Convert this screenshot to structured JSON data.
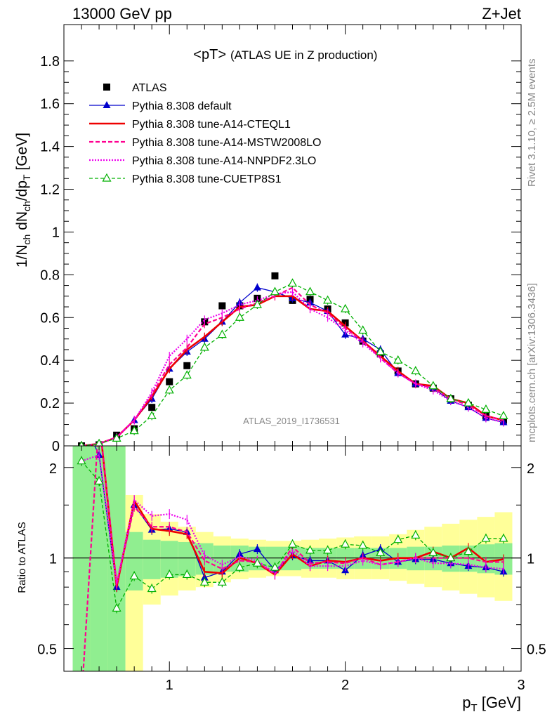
{
  "header": {
    "left": "13000 GeV pp",
    "right": "Z+Jet"
  },
  "side_notes": {
    "rivet": "Rivet 3.1.10, ≥ 2.5M events",
    "mcplots": "mcplots.cern.ch [arXiv:1306.3436]"
  },
  "inner_title": {
    "main": "<pT>",
    "sub": "(ATLAS UE in Z production)"
  },
  "analysis_tag": "ATLAS_2019_I1736531",
  "colors": {
    "data": "#000000",
    "default": "#0000cc",
    "cteql1": "#ee0000",
    "mstw": "#ff0090",
    "nnpdf": "#ee00ee",
    "cuetp8s1": "#00b000",
    "band_inner": "#90ee90",
    "band_outer": "#ffff99"
  },
  "chart_data": [
    {
      "type": "line",
      "title": "",
      "ylabel": "1/N_ch dN_ch/dp_T [GeV]",
      "ylabel_parts": {
        "main": "1/N",
        "sub1": "ch",
        "mid": " dN",
        "sub2": "ch",
        "end": "/dp",
        "sub3": "T",
        "unit": " [GeV]"
      },
      "xlim": [
        0.4,
        3.0
      ],
      "ylim": [
        0,
        1.97
      ],
      "yticks": [
        {
          "v": 0,
          "label": "0"
        },
        {
          "v": 0.2,
          "label": "0.2"
        },
        {
          "v": 0.4,
          "label": "0.4"
        },
        {
          "v": 0.6,
          "label": "0.6"
        },
        {
          "v": 0.8,
          "label": "0.8"
        },
        {
          "v": 1.0,
          "label": "1"
        },
        {
          "v": 1.2,
          "label": "1.2"
        },
        {
          "v": 1.4,
          "label": "1.4"
        },
        {
          "v": 1.6,
          "label": "1.6"
        },
        {
          "v": 1.8,
          "label": "1.8"
        }
      ],
      "legend_position": "top-left",
      "x": [
        0.5,
        0.6,
        0.7,
        0.8,
        0.9,
        1.0,
        1.1,
        1.2,
        1.3,
        1.4,
        1.5,
        1.6,
        1.7,
        1.8,
        1.9,
        2.0,
        2.1,
        2.2,
        2.3,
        2.4,
        2.5,
        2.6,
        2.7,
        2.8,
        2.9
      ],
      "series": [
        {
          "name": "ATLAS",
          "key": "data",
          "style": "data",
          "values": [
            0.0,
            0.005,
            0.05,
            0.08,
            0.18,
            0.3,
            0.375,
            0.58,
            0.655,
            0.655,
            0.69,
            0.795,
            0.68,
            0.685,
            0.64,
            0.575,
            0.49,
            0.43,
            0.35,
            0.29,
            0.27,
            0.22,
            0.19,
            0.14,
            0.12
          ]
        },
        {
          "name": "Pythia 8.308 default",
          "key": "default",
          "style": "default",
          "values": [
            0.0,
            0.01,
            0.04,
            0.12,
            0.22,
            0.36,
            0.44,
            0.5,
            0.58,
            0.67,
            0.74,
            0.72,
            0.69,
            0.67,
            0.63,
            0.52,
            0.5,
            0.45,
            0.34,
            0.29,
            0.27,
            0.21,
            0.18,
            0.13,
            0.11
          ]
        },
        {
          "name": "Pythia 8.308 tune-A14-CTEQL1",
          "key": "cteql1",
          "style": "cteql1",
          "values": [
            0.0,
            0.01,
            0.04,
            0.12,
            0.23,
            0.36,
            0.45,
            0.51,
            0.58,
            0.65,
            0.66,
            0.7,
            0.7,
            0.64,
            0.63,
            0.56,
            0.49,
            0.42,
            0.35,
            0.29,
            0.28,
            0.22,
            0.2,
            0.14,
            0.12
          ]
        },
        {
          "name": "Pythia 8.308 tune-A14-MSTW2008LO",
          "key": "mstw",
          "style": "mstw",
          "values": [
            0.0,
            0.01,
            0.04,
            0.12,
            0.24,
            0.38,
            0.46,
            0.57,
            0.6,
            0.64,
            0.67,
            0.7,
            0.74,
            0.66,
            0.62,
            0.55,
            0.49,
            0.41,
            0.34,
            0.29,
            0.27,
            0.22,
            0.19,
            0.14,
            0.12
          ]
        },
        {
          "name": "Pythia 8.308 tune-A14-NNPDF2.3LO",
          "key": "nnpdf",
          "style": "nnpdf",
          "values": [
            0.0,
            0.01,
            0.04,
            0.12,
            0.25,
            0.42,
            0.5,
            0.59,
            0.62,
            0.66,
            0.68,
            0.71,
            0.72,
            0.64,
            0.6,
            0.54,
            0.48,
            0.41,
            0.34,
            0.29,
            0.26,
            0.21,
            0.18,
            0.13,
            0.11
          ]
        },
        {
          "name": "Pythia 8.308 tune-CUETP8S1",
          "key": "cuetp8s1",
          "style": "cuetp8s1",
          "values": [
            0.0,
            0.01,
            0.035,
            0.07,
            0.14,
            0.26,
            0.33,
            0.46,
            0.52,
            0.6,
            0.66,
            0.72,
            0.76,
            0.72,
            0.68,
            0.64,
            0.54,
            0.44,
            0.4,
            0.35,
            0.28,
            0.22,
            0.2,
            0.17,
            0.14
          ]
        }
      ]
    },
    {
      "type": "line",
      "title": "",
      "xlabel": "p_T [GeV]",
      "xlabel_parts": {
        "main": "p",
        "sub": "T",
        "unit": " [GeV]"
      },
      "ylabel": "Ratio to ATLAS",
      "xlim": [
        0.4,
        3.0
      ],
      "ylim": [
        0.42,
        2.36
      ],
      "yscale": "log",
      "reference_line": 1,
      "xticks": [
        {
          "v": 1,
          "label": "1"
        },
        {
          "v": 2,
          "label": "2"
        },
        {
          "v": 3,
          "label": "3"
        }
      ],
      "yticks": [
        {
          "v": 0.5,
          "label": "0.5"
        },
        {
          "v": 1,
          "label": "1"
        },
        {
          "v": 2,
          "label": "2"
        }
      ],
      "x": [
        0.5,
        0.6,
        0.7,
        0.8,
        0.9,
        1.0,
        1.1,
        1.2,
        1.3,
        1.4,
        1.5,
        1.6,
        1.7,
        1.8,
        1.9,
        2.0,
        2.1,
        2.2,
        2.3,
        2.4,
        2.5,
        2.6,
        2.7,
        2.8,
        2.9
      ],
      "bands": {
        "edges": [
          0.45,
          0.55,
          0.65,
          0.75,
          0.85,
          0.95,
          1.05,
          1.15,
          1.25,
          1.35,
          1.45,
          1.55,
          1.65,
          1.75,
          1.85,
          1.95,
          2.05,
          2.15,
          2.25,
          2.35,
          2.45,
          2.55,
          2.65,
          2.75,
          2.85,
          2.95
        ],
        "inner_lo": [
          0.42,
          0.42,
          0.42,
          0.78,
          0.85,
          0.86,
          0.87,
          0.88,
          0.9,
          0.9,
          0.91,
          0.91,
          0.91,
          0.92,
          0.92,
          0.92,
          0.92,
          0.92,
          0.92,
          0.91,
          0.91,
          0.9,
          0.9,
          0.89,
          0.88
        ],
        "inner_hi": [
          2.36,
          2.36,
          2.36,
          1.22,
          1.15,
          1.14,
          1.13,
          1.12,
          1.1,
          1.1,
          1.09,
          1.09,
          1.09,
          1.08,
          1.08,
          1.08,
          1.08,
          1.08,
          1.08,
          1.09,
          1.09,
          1.1,
          1.1,
          1.11,
          1.12
        ],
        "outer_lo": [
          0.42,
          0.42,
          0.42,
          0.42,
          0.7,
          0.75,
          0.78,
          0.8,
          0.83,
          0.85,
          0.86,
          0.87,
          0.87,
          0.86,
          0.86,
          0.85,
          0.85,
          0.85,
          0.84,
          0.82,
          0.8,
          0.78,
          0.76,
          0.74,
          0.72
        ],
        "outer_hi": [
          2.36,
          2.36,
          2.36,
          1.62,
          1.4,
          1.32,
          1.27,
          1.22,
          1.18,
          1.16,
          1.15,
          1.14,
          1.14,
          1.15,
          1.16,
          1.17,
          1.18,
          1.18,
          1.2,
          1.24,
          1.27,
          1.3,
          1.34,
          1.37,
          1.42
        ]
      },
      "series": [
        {
          "name": "Pythia 8.308 default",
          "key": "default",
          "style": "default",
          "values": [
            2.55,
            2.2,
            0.8,
            1.5,
            1.24,
            1.25,
            1.22,
            0.86,
            0.9,
            1.03,
            1.07,
            0.91,
            1.02,
            0.98,
            0.98,
            0.91,
            1.02,
            1.07,
            0.97,
            0.99,
            0.99,
            0.96,
            0.94,
            0.93,
            0.9
          ]
        },
        {
          "name": "Pythia 8.308 tune-A14-CTEQL1",
          "key": "cteql1",
          "style": "cteql1",
          "values": [
            2.55,
            2.55,
            0.8,
            1.55,
            1.25,
            1.23,
            1.2,
            0.9,
            0.89,
            1.0,
            0.96,
            0.88,
            1.03,
            0.94,
            0.98,
            0.97,
            1.0,
            0.98,
            1.0,
            1.0,
            1.05,
            1.0,
            1.08,
            0.97,
            0.99
          ]
        },
        {
          "name": "Pythia 8.308 tune-A14-MSTW2008LO",
          "key": "mstw",
          "style": "mstw",
          "values": [
            0.0,
            2.4,
            0.82,
            1.48,
            1.27,
            1.27,
            1.22,
            0.98,
            0.92,
            0.98,
            0.97,
            0.88,
            1.09,
            0.96,
            0.97,
            0.96,
            1.0,
            0.95,
            0.97,
            1.0,
            1.0,
            1.0,
            1.0,
            0.97,
            0.97
          ]
        },
        {
          "name": "Pythia 8.308 tune-A14-NNPDF2.3LO",
          "key": "nnpdf",
          "style": "nnpdf",
          "values": [
            2.1,
            2.2,
            0.82,
            1.56,
            1.38,
            1.4,
            1.34,
            1.02,
            0.95,
            1.01,
            0.98,
            0.89,
            1.06,
            0.94,
            0.94,
            0.94,
            0.98,
            0.95,
            0.97,
            1.0,
            0.96,
            0.96,
            0.95,
            0.93,
            0.92
          ]
        },
        {
          "name": "Pythia 8.308 tune-CUETP8S1",
          "key": "cuetp8s1",
          "style": "cuetp8s1",
          "values": [
            2.1,
            1.8,
            0.68,
            0.87,
            0.79,
            0.88,
            0.88,
            0.83,
            0.83,
            0.93,
            0.96,
            0.93,
            1.11,
            1.06,
            1.06,
            1.11,
            1.1,
            1.04,
            1.15,
            1.19,
            1.04,
            1.0,
            1.05,
            1.16,
            1.16
          ]
        }
      ]
    }
  ]
}
